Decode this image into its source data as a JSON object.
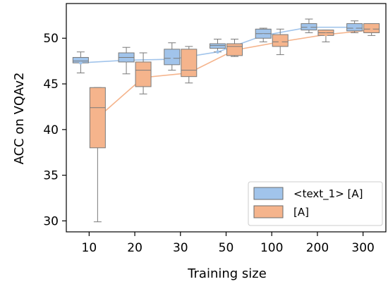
{
  "chart_data": {
    "type": "box",
    "xlabel": "Training size",
    "ylabel": "ACC on VQAv2",
    "categories": [
      "10",
      "20",
      "30",
      "50",
      "100",
      "200",
      "300"
    ],
    "ylim": [
      28.8,
      53.8
    ],
    "yticks": [
      30,
      35,
      40,
      45,
      50
    ],
    "grid": false,
    "legend_position": "lower-right",
    "series": [
      {
        "name": "<text_1> [A]",
        "color": "#a1c4eb",
        "line_color": "#a1c4eb",
        "box": [
          {
            "min": 46.2,
            "q1": 47.3,
            "median": 47.5,
            "q3": 47.9,
            "max": 48.5
          },
          {
            "min": 46.1,
            "q1": 47.4,
            "median": 47.9,
            "q3": 48.4,
            "max": 49.0
          },
          {
            "min": 46.5,
            "q1": 47.1,
            "median": 47.8,
            "q3": 48.8,
            "max": 49.5
          },
          {
            "min": 48.5,
            "q1": 48.9,
            "median": 49.2,
            "q3": 49.4,
            "max": 49.9
          },
          {
            "min": 49.6,
            "q1": 50.0,
            "median": 50.5,
            "q3": 51.0,
            "max": 51.1
          },
          {
            "min": 50.6,
            "q1": 50.9,
            "median": 51.2,
            "q3": 51.6,
            "max": 52.1
          },
          {
            "min": 50.6,
            "q1": 50.8,
            "median": 51.1,
            "q3": 51.6,
            "max": 51.9
          }
        ],
        "mean": [
          47.3,
          47.6,
          47.7,
          48.5,
          50.3,
          51.2,
          51.2
        ]
      },
      {
        "name": "[A]",
        "color": "#f5b48c",
        "line_color": "#f5b48c",
        "box": [
          {
            "min": 29.9,
            "q1": 38.0,
            "median": 42.4,
            "q3": 44.6,
            "max": 44.6
          },
          {
            "min": 43.9,
            "q1": 44.7,
            "median": 46.5,
            "q3": 47.4,
            "max": 48.4
          },
          {
            "min": 45.1,
            "q1": 45.8,
            "median": 46.5,
            "q3": 48.8,
            "max": 49.1
          },
          {
            "min": 48.0,
            "q1": 48.1,
            "median": 49.1,
            "q3": 49.4,
            "max": 49.9
          },
          {
            "min": 48.2,
            "q1": 49.1,
            "median": 49.6,
            "q3": 50.4,
            "max": 51.0
          },
          {
            "min": 49.6,
            "q1": 50.3,
            "median": 50.6,
            "q3": 50.9,
            "max": 50.9
          },
          {
            "min": 50.3,
            "q1": 50.6,
            "median": 51.0,
            "q3": 51.6,
            "max": 51.6
          }
        ],
        "mean": [
          41.3,
          45.7,
          46.2,
          48.7,
          49.6,
          50.4,
          50.9
        ]
      }
    ]
  }
}
